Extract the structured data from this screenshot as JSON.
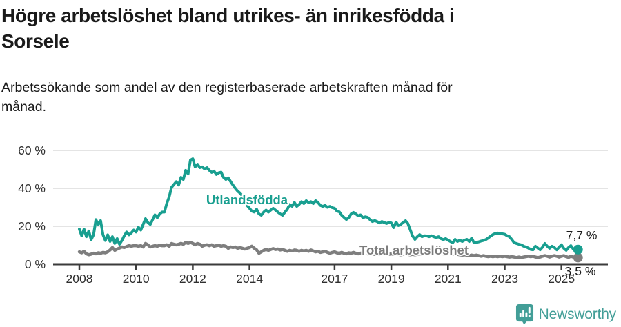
{
  "header": {
    "title_lines": [
      "Högre arbetslöshet bland utrikes- än inrikesfödda i",
      "Sorsele"
    ],
    "subtitle_lines": [
      "Arbetssökande som andel av den registerbaserade arbetskraften månad för",
      "månad."
    ]
  },
  "chart_data": {
    "type": "line",
    "title": "Högre arbetslöshet bland utrikes- än inrikesfödda i Sorsele",
    "subtitle": "Arbetssökande som andel av den registerbaserade arbetskraften månad för månad.",
    "frequency": "monthly",
    "x_start_year": 2008,
    "x_end": "2025-08",
    "ylim": [
      0,
      62
    ],
    "grid": "horizontal",
    "x_ticks": [
      {
        "year": 2008,
        "label": "2008"
      },
      {
        "year": 2010,
        "label": "2010"
      },
      {
        "year": 2012,
        "label": "2012"
      },
      {
        "year": 2014,
        "label": "2014"
      },
      {
        "year": 2017,
        "label": "2017"
      },
      {
        "year": 2019,
        "label": "2019"
      },
      {
        "year": 2021,
        "label": "2021"
      },
      {
        "year": 2023,
        "label": "2023"
      },
      {
        "year": 2025,
        "label": "2025"
      }
    ],
    "y_ticks": [
      {
        "value": 0,
        "label": "0 %"
      },
      {
        "value": 20,
        "label": "20 %"
      },
      {
        "value": 40,
        "label": "40 %"
      },
      {
        "value": 60,
        "label": "60 %"
      }
    ],
    "series": [
      {
        "name": "Utlandsfödda",
        "color": "#199f90",
        "label_color": "#199f90",
        "end_label": "7,7 %",
        "end_value": 7.7,
        "values": [
          18.5,
          15,
          18.5,
          14.5,
          17.5,
          13,
          15.5,
          23.5,
          21,
          23,
          15.5,
          12.5,
          15.5,
          12,
          14.5,
          11,
          13.5,
          10.5,
          12.5,
          15,
          17,
          15.5,
          16.5,
          18,
          17,
          19.5,
          18,
          21,
          24,
          22,
          21,
          23.5,
          26,
          24.5,
          26.5,
          27.5,
          27.5,
          32,
          35.5,
          40.5,
          42,
          43.5,
          41.8,
          45.8,
          44.7,
          49.5,
          47.6,
          54.9,
          55.6,
          51.3,
          52.7,
          50.9,
          51.3,
          50.2,
          50.9,
          49.5,
          48.4,
          49.1,
          47.3,
          48.2,
          48.5,
          45.8,
          44.7,
          45.5,
          43.6,
          41.8,
          40,
          38.5,
          37.5,
          36,
          33.5,
          31,
          29.5,
          28,
          27.5,
          29,
          26.5,
          25.8,
          27.5,
          28.5,
          27.5,
          28.5,
          29.5,
          28.5,
          27.5,
          26.5,
          25.8,
          27.5,
          29,
          31.5,
          30.5,
          32.5,
          30.5,
          31.5,
          33,
          32,
          33.5,
          32.5,
          33,
          32,
          33.5,
          32.5,
          31,
          30.5,
          31,
          30,
          30.5,
          29.8,
          29.5,
          28,
          27.6,
          25.8,
          24.7,
          23.6,
          24.5,
          26.5,
          27.3,
          26.5,
          25.5,
          26,
          24.5,
          25,
          24.7,
          23.5,
          22.5,
          23,
          22.5,
          21.8,
          22.5,
          22,
          21.5,
          22,
          21.8,
          19.3,
          22.2,
          20.4,
          21,
          22,
          22.9,
          21.5,
          18.2,
          14.9,
          13.1,
          14.5,
          15.6,
          14.5,
          15,
          14.9,
          14.5,
          15,
          14.5,
          14,
          14.5,
          13.5,
          13,
          13.5,
          12.7,
          12,
          11.3,
          13.1,
          12,
          12.7,
          12,
          12.7,
          13.1,
          12,
          13.8,
          11.3,
          11.5,
          11.8,
          12.2,
          12.5,
          13,
          13.8,
          14.8,
          15.6,
          16.2,
          16.4,
          16.2,
          16,
          15.8,
          15,
          14.5,
          13,
          11.3,
          10.9,
          10.5,
          10.2,
          9.5,
          9.1,
          8.5,
          7.8,
          7.6,
          9.5,
          8.5,
          7.6,
          9,
          10.9,
          9.5,
          8.4,
          9.5,
          8.8,
          7.6,
          9,
          10.2,
          8.4,
          7.3,
          8.8,
          9.8,
          8,
          7.3,
          7.7
        ]
      },
      {
        "name": "Total arbetslöshet",
        "color": "#7e7e7e",
        "label_color": "#7c7c7c",
        "end_label": "3,5 %",
        "end_value": 3.5,
        "values": [
          6.5,
          6,
          6.8,
          5.5,
          5,
          5.3,
          5.8,
          5.5,
          6,
          5.8,
          6.2,
          6,
          6.5,
          7.5,
          8.8,
          7.3,
          8,
          8.5,
          9.1,
          8.8,
          9.3,
          9.8,
          9.5,
          9.8,
          9.8,
          9.5,
          9.8,
          9.1,
          10.9,
          10.2,
          9.1,
          9.5,
          9.8,
          9.5,
          10,
          9.8,
          9.8,
          10.2,
          9.5,
          10.9,
          10.5,
          10.2,
          10.5,
          11,
          10.5,
          11.5,
          11,
          11.5,
          11,
          10.2,
          10.9,
          10.5,
          9.5,
          10,
          10.2,
          9.8,
          10.2,
          9.5,
          9.8,
          10,
          9.5,
          9.8,
          9.5,
          8.4,
          9.1,
          8.8,
          9.1,
          8.4,
          8.8,
          8.4,
          8,
          8.4,
          8.8,
          9.5,
          8.4,
          7.6,
          5.8,
          6.5,
          7.3,
          7.8,
          7.3,
          7.8,
          8.2,
          7.8,
          8,
          7.5,
          7.8,
          7.3,
          6.8,
          7.3,
          7,
          7.5,
          7.3,
          6.8,
          7.3,
          7,
          7.3,
          6.8,
          7.5,
          7,
          6.5,
          6.8,
          6.2,
          6.5,
          6.8,
          6.2,
          5.8,
          6.2,
          6.5,
          6,
          5.8,
          6.2,
          5.8,
          5.5,
          6,
          5.8,
          6.2,
          5.8,
          5.5,
          5.8,
          6,
          5.8,
          5.5,
          5.8,
          5.5,
          5.2,
          5.5,
          5.2,
          5.5,
          5.8,
          5.5,
          5.2,
          5.5,
          5.2,
          5.5,
          5.2,
          5,
          5.2,
          5.5,
          5.2,
          5,
          5.2,
          5,
          5.2,
          5.5,
          5.2,
          5.8,
          6.2,
          6.5,
          6.2,
          6,
          5.8,
          5.5,
          5.8,
          5.5,
          5.2,
          5.8,
          5.5,
          5.2,
          5.5,
          5.2,
          5,
          4.8,
          5,
          4.8,
          4.5,
          4.8,
          4.5,
          4.8,
          4.5,
          4.2,
          4.5,
          4.2,
          4,
          4.2,
          4,
          4.2,
          4,
          4.2,
          4,
          4.2,
          4,
          3.8,
          4,
          3.8,
          3.5,
          3.8,
          3.5,
          3.8,
          4,
          4.2,
          4,
          4.2,
          3.8,
          3.5,
          3.8,
          4.2,
          4.5,
          4.2,
          3.8,
          4.2,
          4.5,
          4.2,
          3.8,
          4.2,
          4.5,
          4,
          3.6,
          4.2,
          3.8,
          3.4,
          3.5
        ]
      }
    ],
    "legend_position": "inline-labels"
  },
  "colors": {
    "accent_teal": "#199f90",
    "series_gray": "#7e7e7e",
    "grid": "#dcdcdc",
    "axis": "#3b3b3b",
    "tick_text": "#2f2f2f",
    "brand_teal": "#429e97"
  },
  "footer": {
    "brand": "Newsworthy"
  }
}
